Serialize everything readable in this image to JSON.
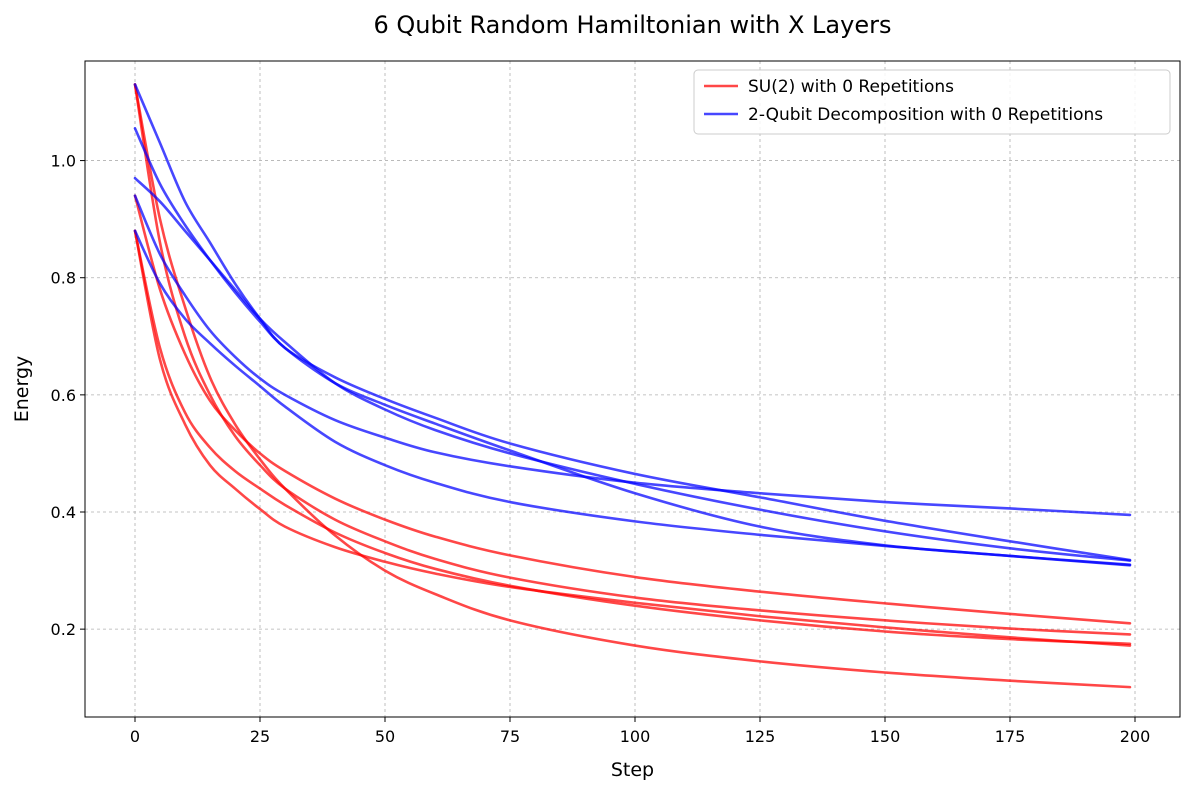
{
  "chart_data": {
    "type": "line",
    "title": "6 Qubit Random Hamiltonian with X Layers",
    "xlabel": "Step",
    "ylabel": "Energy",
    "xlim": [
      -10,
      209
    ],
    "ylim": [
      0.05,
      1.17
    ],
    "xticks": [
      0,
      25,
      50,
      75,
      100,
      125,
      150,
      175,
      200
    ],
    "yticks": [
      0.2,
      0.4,
      0.6,
      0.8,
      1.0
    ],
    "ytick_labels": [
      "0.2",
      "0.4",
      "0.6",
      "0.8",
      "1.0"
    ],
    "grid": true,
    "legend_position": "top-right",
    "legend": [
      {
        "label": "SU(2) with 0 Repetitions",
        "color": "#ff0000"
      },
      {
        "label": "2-Qubit Decomposition with 0 Repetitions",
        "color": "#0000ff"
      }
    ],
    "series": [
      {
        "group": "SU(2) with 0 Repetitions",
        "color": "#ff0000",
        "x": [
          0,
          5,
          10,
          15,
          20,
          25,
          30,
          40,
          50,
          60,
          75,
          100,
          125,
          150,
          175,
          199
        ],
        "y": [
          1.13,
          0.86,
          0.7,
          0.6,
          0.53,
          0.48,
          0.44,
          0.387,
          0.35,
          0.32,
          0.288,
          0.254,
          0.232,
          0.215,
          0.201,
          0.191
        ]
      },
      {
        "group": "SU(2) with 0 Repetitions",
        "color": "#ff0000",
        "x": [
          0,
          5,
          10,
          15,
          20,
          25,
          30,
          40,
          50,
          60,
          75,
          100,
          125,
          150,
          175,
          199
        ],
        "y": [
          1.13,
          0.9,
          0.75,
          0.63,
          0.55,
          0.49,
          0.44,
          0.36,
          0.3,
          0.26,
          0.215,
          0.172,
          0.145,
          0.126,
          0.112,
          0.101
        ]
      },
      {
        "group": "SU(2) with 0 Repetitions",
        "color": "#ff0000",
        "x": [
          0,
          5,
          10,
          15,
          20,
          25,
          30,
          40,
          50,
          60,
          75,
          100,
          125,
          150,
          175,
          199
        ],
        "y": [
          0.94,
          0.78,
          0.67,
          0.59,
          0.54,
          0.5,
          0.47,
          0.423,
          0.387,
          0.358,
          0.326,
          0.289,
          0.264,
          0.244,
          0.226,
          0.21
        ]
      },
      {
        "group": "SU(2) with 0 Repetitions",
        "color": "#ff0000",
        "x": [
          0,
          5,
          10,
          15,
          20,
          25,
          30,
          40,
          50,
          60,
          75,
          100,
          125,
          150,
          175,
          199
        ],
        "y": [
          0.88,
          0.66,
          0.55,
          0.48,
          0.44,
          0.405,
          0.375,
          0.34,
          0.315,
          0.295,
          0.272,
          0.245,
          0.222,
          0.203,
          0.186,
          0.172
        ]
      },
      {
        "group": "SU(2) with 0 Repetitions",
        "color": "#ff0000",
        "x": [
          0,
          5,
          10,
          15,
          20,
          25,
          30,
          40,
          50,
          60,
          75,
          100,
          125,
          150,
          175,
          199
        ],
        "y": [
          0.88,
          0.68,
          0.57,
          0.51,
          0.47,
          0.44,
          0.412,
          0.365,
          0.33,
          0.303,
          0.274,
          0.24,
          0.215,
          0.196,
          0.183,
          0.175
        ]
      },
      {
        "group": "2-Qubit Decomposition with 0 Repetitions",
        "color": "#0000ff",
        "x": [
          0,
          5,
          10,
          15,
          20,
          25,
          30,
          40,
          50,
          60,
          75,
          100,
          125,
          150,
          175,
          199
        ],
        "y": [
          1.13,
          1.03,
          0.93,
          0.86,
          0.79,
          0.73,
          0.68,
          0.63,
          0.593,
          0.561,
          0.517,
          0.465,
          0.425,
          0.385,
          0.35,
          0.318
        ]
      },
      {
        "group": "2-Qubit Decomposition with 0 Repetitions",
        "color": "#0000ff",
        "x": [
          0,
          5,
          10,
          15,
          20,
          25,
          30,
          40,
          50,
          60,
          75,
          100,
          125,
          150,
          175,
          199
        ],
        "y": [
          1.055,
          0.96,
          0.89,
          0.83,
          0.775,
          0.725,
          0.68,
          0.62,
          0.583,
          0.551,
          0.505,
          0.432,
          0.375,
          0.343,
          0.325,
          0.309
        ]
      },
      {
        "group": "2-Qubit Decomposition with 0 Repetitions",
        "color": "#0000ff",
        "x": [
          0,
          5,
          10,
          15,
          20,
          25,
          30,
          40,
          50,
          60,
          75,
          100,
          125,
          150,
          175,
          199
        ],
        "y": [
          0.97,
          0.93,
          0.88,
          0.83,
          0.78,
          0.73,
          0.69,
          0.62,
          0.575,
          0.54,
          0.5,
          0.448,
          0.404,
          0.367,
          0.338,
          0.317
        ]
      },
      {
        "group": "2-Qubit Decomposition with 0 Repetitions",
        "color": "#0000ff",
        "x": [
          0,
          5,
          10,
          15,
          20,
          25,
          30,
          40,
          50,
          60,
          75,
          100,
          125,
          150,
          175,
          199
        ],
        "y": [
          0.94,
          0.84,
          0.77,
          0.71,
          0.665,
          0.628,
          0.6,
          0.557,
          0.527,
          0.502,
          0.478,
          0.45,
          0.432,
          0.417,
          0.406,
          0.395
        ]
      },
      {
        "group": "2-Qubit Decomposition with 0 Repetitions",
        "color": "#0000ff",
        "x": [
          0,
          5,
          10,
          15,
          20,
          25,
          30,
          40,
          50,
          60,
          75,
          100,
          125,
          150,
          175,
          199
        ],
        "y": [
          0.88,
          0.79,
          0.73,
          0.688,
          0.65,
          0.615,
          0.58,
          0.52,
          0.48,
          0.45,
          0.417,
          0.384,
          0.361,
          0.342,
          0.325,
          0.31
        ]
      }
    ]
  }
}
